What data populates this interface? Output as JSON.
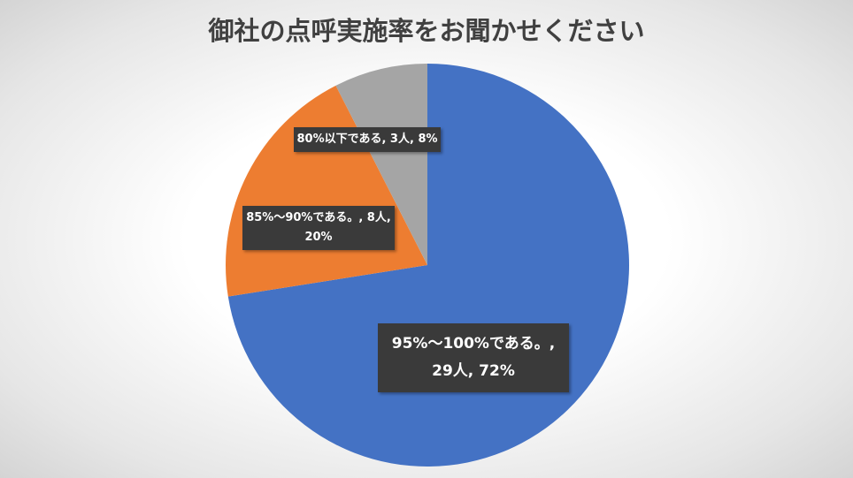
{
  "chart_data": {
    "type": "pie",
    "title": "御社の点呼実施率をお聞かせください",
    "categories": [
      "95%～100%である。",
      "85%～90%である。",
      "80%以下である"
    ],
    "values": [
      29,
      8,
      3
    ],
    "percents": [
      72,
      20,
      8
    ],
    "colors": [
      "#4472C4",
      "#ED7D31",
      "#A5A5A5"
    ],
    "data_labels": [
      "95%～100%である。, 29人, 72%",
      "85%～90%である。, 8人, 20%",
      "80%以下である, 3人, 8%"
    ],
    "legend": "none"
  }
}
